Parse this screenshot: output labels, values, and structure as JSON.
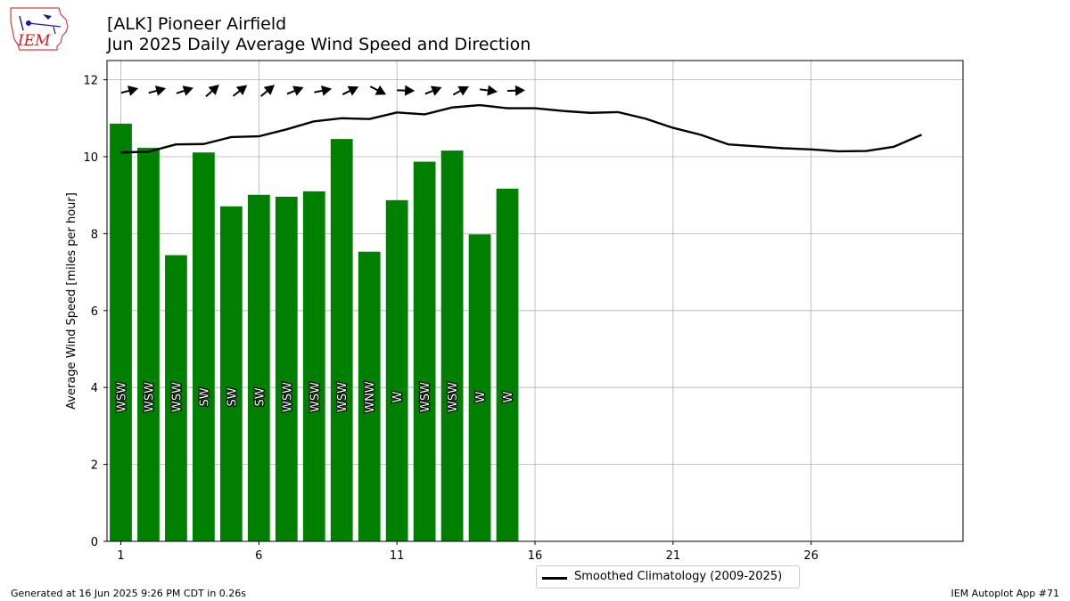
{
  "header": {
    "title_line1": "[ALK] Pioneer Airfield",
    "title_line2": "Jun 2025 Daily Average Wind Speed and Direction",
    "logo_text": "IEM"
  },
  "footer": {
    "left": "Generated at 16 Jun 2025 9:26 PM CDT in 0.26s",
    "right": "IEM Autoplot App #71"
  },
  "colors": {
    "bar": "#008000",
    "climatology": "#000000",
    "grid": "#b0b0b0"
  },
  "chart_data": {
    "type": "bar",
    "ylabel": "Average Wind Speed [miles per hour]",
    "xlim": [
      0.5,
      31.5
    ],
    "ylim": [
      0,
      12.5
    ],
    "xticks": [
      1,
      6,
      11,
      16,
      21,
      26
    ],
    "yticks": [
      0,
      2,
      4,
      6,
      8,
      10,
      12
    ],
    "grid": true,
    "legend_position": "bottom-center",
    "days": [
      1,
      2,
      3,
      4,
      5,
      6,
      7,
      8,
      9,
      10,
      11,
      12,
      13,
      14,
      15
    ],
    "values": [
      10.86,
      10.23,
      7.44,
      10.11,
      8.71,
      9.01,
      8.96,
      9.1,
      10.46,
      7.53,
      8.87,
      9.87,
      10.16,
      7.98,
      9.17
    ],
    "directions": [
      "WSW",
      "WSW",
      "WSW",
      "SW",
      "SW",
      "SW",
      "WSW",
      "WSW",
      "WSW",
      "WNW",
      "W",
      "WSW",
      "WSW",
      "W",
      "W"
    ],
    "direction_degrees": [
      255,
      255,
      252,
      228,
      232,
      230,
      248,
      258,
      244,
      297,
      272,
      248,
      242,
      278,
      268
    ],
    "series": [
      {
        "name": "Smoothed Climatology (2009-2025)",
        "type": "line",
        "x": [
          1,
          2,
          3,
          4,
          5,
          6,
          7,
          8,
          9,
          10,
          11,
          12,
          13,
          14,
          15,
          16,
          17,
          18,
          19,
          20,
          21,
          22,
          23,
          24,
          25,
          26,
          27,
          28,
          29,
          30
        ],
        "values": [
          10.11,
          10.13,
          10.32,
          10.33,
          10.51,
          10.53,
          10.71,
          10.92,
          11.0,
          10.98,
          11.15,
          11.1,
          11.28,
          11.34,
          11.26,
          11.26,
          11.19,
          11.14,
          11.16,
          10.99,
          10.75,
          10.57,
          10.32,
          10.27,
          10.22,
          10.19,
          10.14,
          10.15,
          10.26,
          10.57
        ]
      }
    ]
  }
}
